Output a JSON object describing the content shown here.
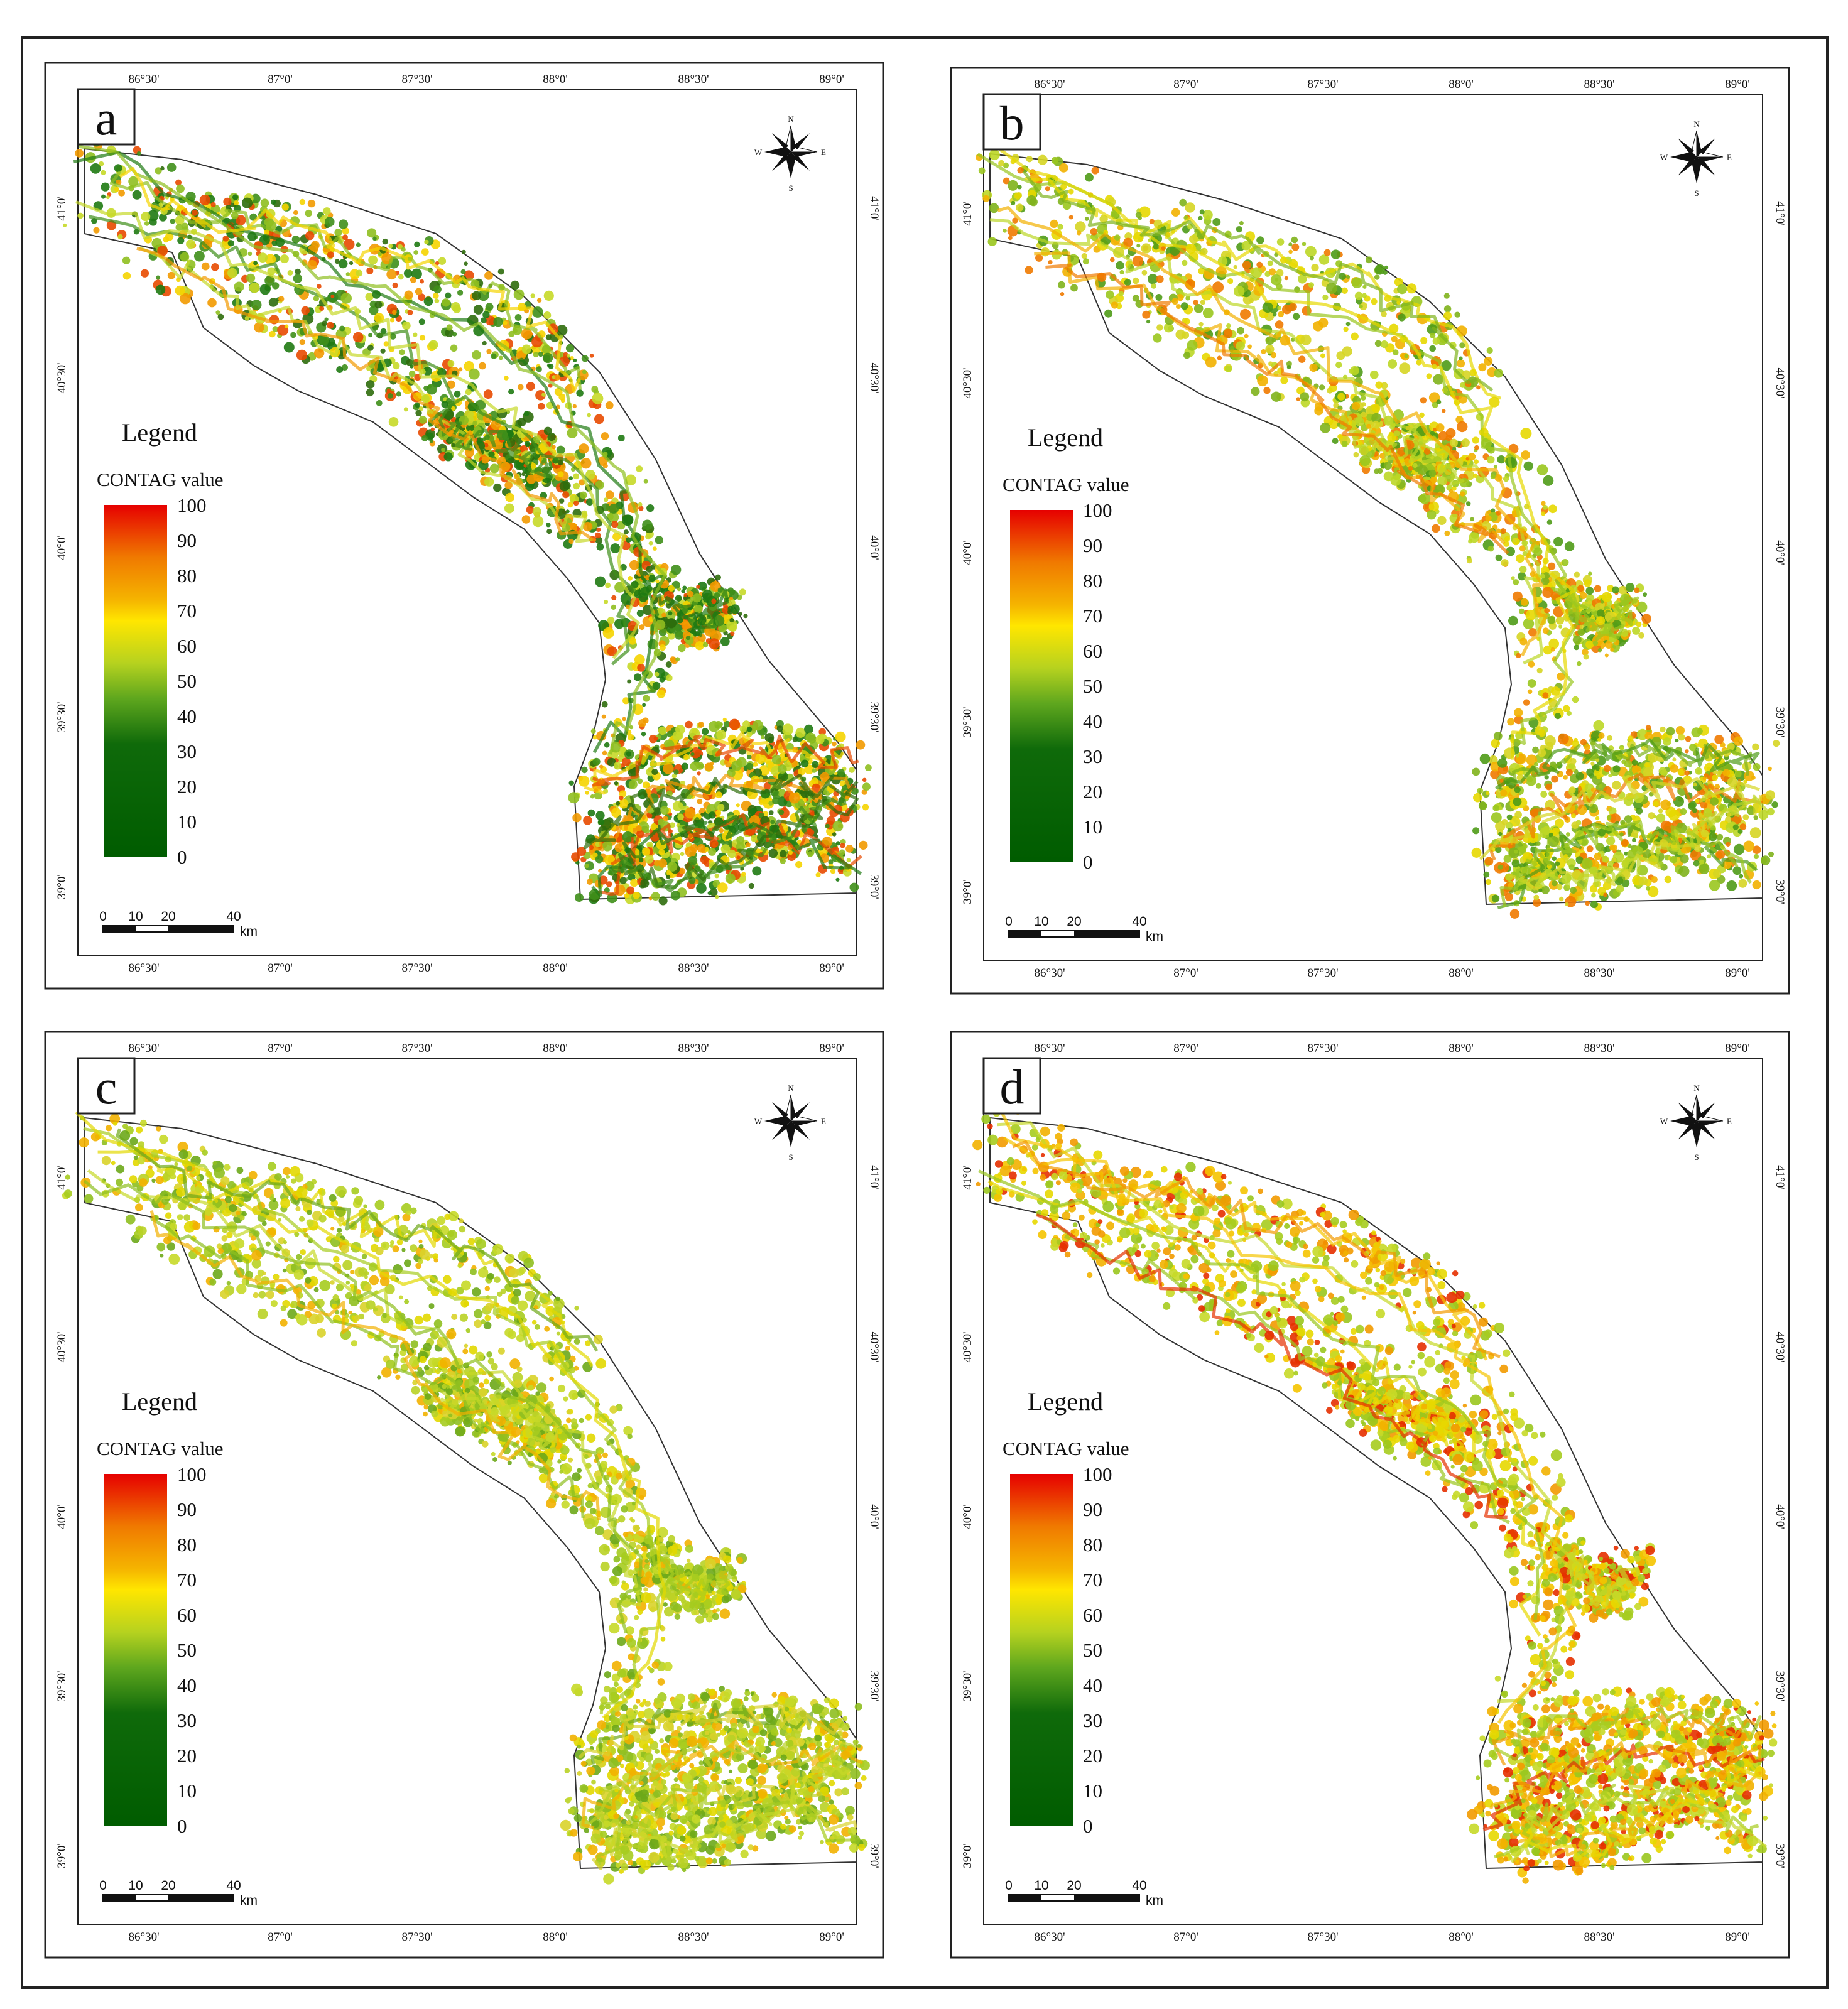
{
  "figure": {
    "panels": [
      {
        "label": "a"
      },
      {
        "label": "b"
      },
      {
        "label": "c"
      },
      {
        "label": "d"
      }
    ],
    "longitude_labels": [
      "86°30'",
      "87°0'",
      "87°30'",
      "88°0'",
      "88°30'",
      "89°0'"
    ],
    "latitude_labels": [
      "41°0'",
      "40°30'",
      "40°0'",
      "39°30'",
      "39°0'"
    ],
    "legend": {
      "title": "Legend",
      "subtitle": "CONTAG value",
      "ticks": [
        "100",
        "90",
        "80",
        "70",
        "60",
        "50",
        "40",
        "30",
        "20",
        "10",
        "0"
      ]
    },
    "scale_bar": {
      "ticks": [
        "0",
        "10",
        "20",
        "40"
      ],
      "unit": "km"
    },
    "north_arrow": {
      "n": "N",
      "s": "S",
      "e": "E",
      "w": "W"
    },
    "colors": {
      "high": "#e60000",
      "orange": "#f5a300",
      "yellow": "#ffe600",
      "light_green": "#a6cc1f",
      "green": "#3f8f1a",
      "low": "#005c00"
    },
    "icons": [
      "north-arrow-icon"
    ]
  }
}
